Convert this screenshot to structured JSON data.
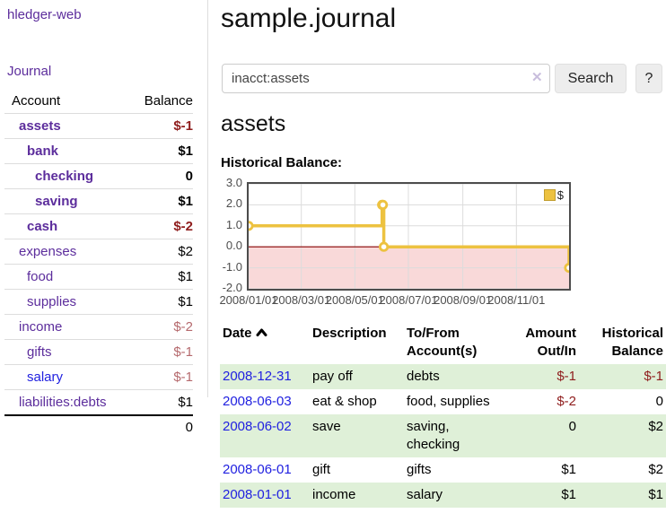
{
  "sidebar": {
    "app_title": "hledger-web",
    "nav": {
      "journal_label": "Journal"
    },
    "accounts_table": {
      "account_header": "Account",
      "balance_header": "Balance",
      "rows": [
        {
          "account": "assets",
          "balance": "$-1"
        },
        {
          "account": "bank",
          "balance": "$1"
        },
        {
          "account": "checking",
          "balance": "0"
        },
        {
          "account": "saving",
          "balance": "$1"
        },
        {
          "account": "cash",
          "balance": "$-2"
        },
        {
          "account": "expenses",
          "balance": "$2"
        },
        {
          "account": "food",
          "balance": "$1"
        },
        {
          "account": "supplies",
          "balance": "$1"
        },
        {
          "account": "income",
          "balance": "$-2"
        },
        {
          "account": "gifts",
          "balance": "$-1"
        },
        {
          "account": "salary",
          "balance": "$-1"
        },
        {
          "account": "liabilities:debts",
          "balance": "$1"
        }
      ],
      "total": "0"
    }
  },
  "header": {
    "title": "sample.journal"
  },
  "search": {
    "query": "inacct:assets",
    "clear_glyph": "✕",
    "button_label": "Search",
    "help_label": "?"
  },
  "main": {
    "account_heading": "assets"
  },
  "chart_data": {
    "type": "line",
    "title": "Historical Balance:",
    "step": true,
    "x_range": [
      "2008-01-01",
      "2008-12-31"
    ],
    "ylim": [
      -2,
      3
    ],
    "yticks": [
      "3.0",
      "2.0",
      "1.0",
      "0.0",
      "-1.0",
      "-2.0"
    ],
    "xticks": [
      "2008/01/01",
      "2008/03/01",
      "2008/05/01",
      "2008/07/01",
      "2008/09/01",
      "2008/11/01"
    ],
    "grid": true,
    "legend": "$",
    "legend_position": "top-right",
    "negative_region_color": "#f9d9d9",
    "zero_line_color": "#8b0000",
    "series": [
      {
        "name": "$",
        "color": "#edc240",
        "points": [
          [
            "2008-01-01",
            1
          ],
          [
            "2008-06-01",
            2
          ],
          [
            "2008-06-02",
            2
          ],
          [
            "2008-06-03",
            0
          ],
          [
            "2008-12-31",
            -1
          ]
        ]
      }
    ]
  },
  "register": {
    "headers": {
      "date": "Date",
      "description": "Description",
      "accounts": "To/From\nAccount(s)",
      "amount": "Amount\nOut/In",
      "balance": "Historical\nBalance"
    },
    "rows": [
      {
        "date": "2008-12-31",
        "description": "pay off",
        "accounts": "debts",
        "amount": "$-1",
        "balance": "$-1"
      },
      {
        "date": "2008-06-03",
        "description": "eat & shop",
        "accounts": "food, supplies",
        "amount": "$-2",
        "balance": "0"
      },
      {
        "date": "2008-06-02",
        "description": "save",
        "accounts": "saving,\nchecking",
        "amount": "0",
        "balance": "$2"
      },
      {
        "date": "2008-06-01",
        "description": "gift",
        "accounts": "gifts",
        "amount": "$1",
        "balance": "$2"
      },
      {
        "date": "2008-01-01",
        "description": "income",
        "accounts": "salary",
        "amount": "$1",
        "balance": "$1"
      }
    ]
  }
}
